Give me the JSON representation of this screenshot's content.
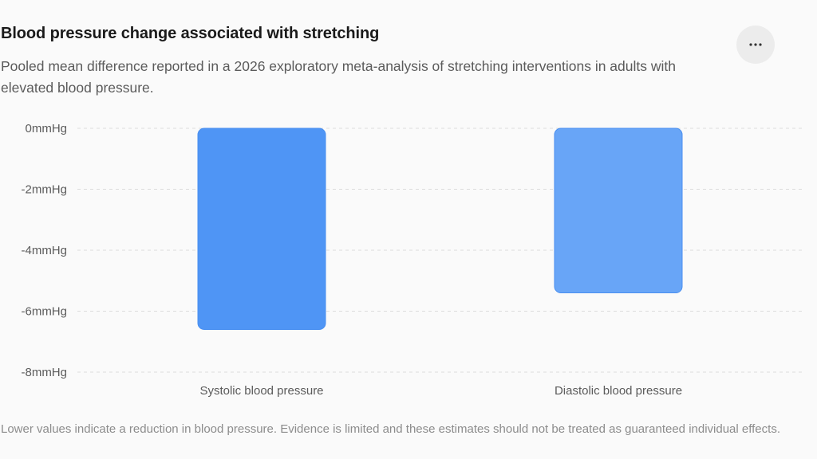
{
  "header": {
    "title": "Blood pressure change associated with stretching",
    "subtitle": "Pooled mean difference reported in a 2026 exploratory meta-analysis of stretching interventions in adults with elevated blood pressure.",
    "more_icon": "more-horizontal-icon"
  },
  "footnote": "Lower values indicate a reduction in blood pressure. Evidence is limited and these estimates should not be treated as guaranteed individual effects.",
  "chart_data": {
    "type": "bar",
    "title": "Blood pressure change associated with stretching",
    "categories": [
      "Systolic blood pressure",
      "Diastolic blood pressure"
    ],
    "values": [
      -6.6,
      -5.4
    ],
    "unit": "mmHg",
    "ylim": [
      -8,
      0
    ],
    "yticks": [
      0,
      -2,
      -4,
      -6,
      -8
    ],
    "ytick_labels": [
      "0mmHg",
      "-2mmHg",
      "-4mmHg",
      "-6mmHg",
      "-8mmHg"
    ],
    "grid": true,
    "legend": "none",
    "bar_colors": [
      "#4f95f5",
      "#68a5f7"
    ],
    "bar_edge_color": "#4a8ff0"
  },
  "colors": {
    "background": "#fafafa",
    "title": "#1a1a1a",
    "muted_text": "#5b5b5b",
    "footnote_text": "#8c8c8c",
    "gridline": "#dcdcdc"
  }
}
